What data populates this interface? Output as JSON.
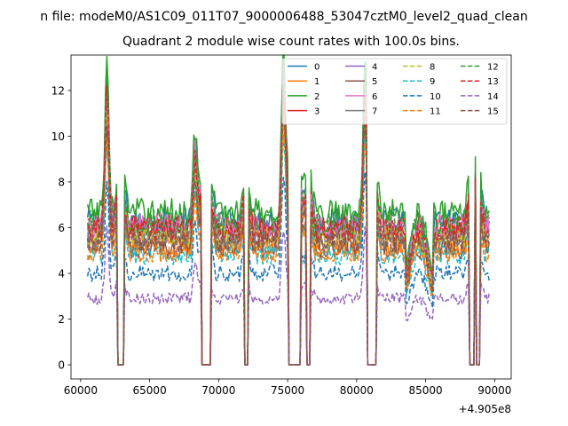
{
  "chart_data": {
    "type": "line",
    "suptitle": "n file: modeM0/AS1C09_011T07_9000006488_53047cztM0_level2_quad_clean",
    "title": "Quadrant 2 module wise count rates with 100.0s bins.",
    "xlabel": "",
    "ylabel": "",
    "x_offset_label": "+4.905e8",
    "xlim": [
      59300,
      91200
    ],
    "ylim": [
      -0.62,
      13.55
    ],
    "x_ticks": [
      60000,
      65000,
      70000,
      75000,
      80000,
      85000,
      90000
    ],
    "x_tick_labels": [
      "60000",
      "65000",
      "70000",
      "75000",
      "80000",
      "85000",
      "90000"
    ],
    "y_ticks": [
      0,
      2,
      4,
      6,
      8,
      10,
      12
    ],
    "y_tick_labels": [
      "0",
      "2",
      "4",
      "6",
      "8",
      "10",
      "12"
    ],
    "bin_seconds": 100,
    "x_start": 60500,
    "x_end": 89600,
    "gaps": [
      [
        62700,
        63100
      ],
      [
        68800,
        69400
      ],
      [
        71900,
        72100
      ],
      [
        75100,
        75900
      ],
      [
        76400,
        76600
      ],
      [
        80800,
        81400
      ],
      [
        88200,
        88500
      ],
      [
        88700,
        88900
      ]
    ],
    "spikes": [
      [
        61900,
        1.0
      ],
      [
        68300,
        0.55
      ],
      [
        74700,
        1.1
      ],
      [
        80600,
        0.9
      ]
    ],
    "series": [
      {
        "name": "0",
        "color": "#1f77b4",
        "dash": "solid",
        "level": 6.3
      },
      {
        "name": "1",
        "color": "#ff7f0e",
        "dash": "solid",
        "level": 5.3
      },
      {
        "name": "2",
        "color": "#2ca02c",
        "dash": "solid",
        "level": 6.7
      },
      {
        "name": "3",
        "color": "#d62728",
        "dash": "solid",
        "level": 6.0
      },
      {
        "name": "4",
        "color": "#9467bd",
        "dash": "solid",
        "level": 5.8
      },
      {
        "name": "5",
        "color": "#8c564b",
        "dash": "solid",
        "level": 5.1
      },
      {
        "name": "6",
        "color": "#e377c2",
        "dash": "solid",
        "level": 6.1
      },
      {
        "name": "7",
        "color": "#7f7f7f",
        "dash": "solid",
        "level": 5.5
      },
      {
        "name": "8",
        "color": "#bcbd22",
        "dash": "dashed",
        "level": 5.6
      },
      {
        "name": "9",
        "color": "#17becf",
        "dash": "dashed",
        "level": 4.8
      },
      {
        "name": "10",
        "color": "#1f77b4",
        "dash": "dashed",
        "level": 4.0
      },
      {
        "name": "11",
        "color": "#ff7f0e",
        "dash": "dashed",
        "level": 4.9
      },
      {
        "name": "12",
        "color": "#2ca02c",
        "dash": "dashed",
        "level": 6.2
      },
      {
        "name": "13",
        "color": "#d62728",
        "dash": "dashed",
        "level": 5.9
      },
      {
        "name": "14",
        "color": "#9467bd",
        "dash": "dashed",
        "level": 2.9
      },
      {
        "name": "15",
        "color": "#8c564b",
        "dash": "dashed",
        "level": 5.4
      }
    ]
  }
}
